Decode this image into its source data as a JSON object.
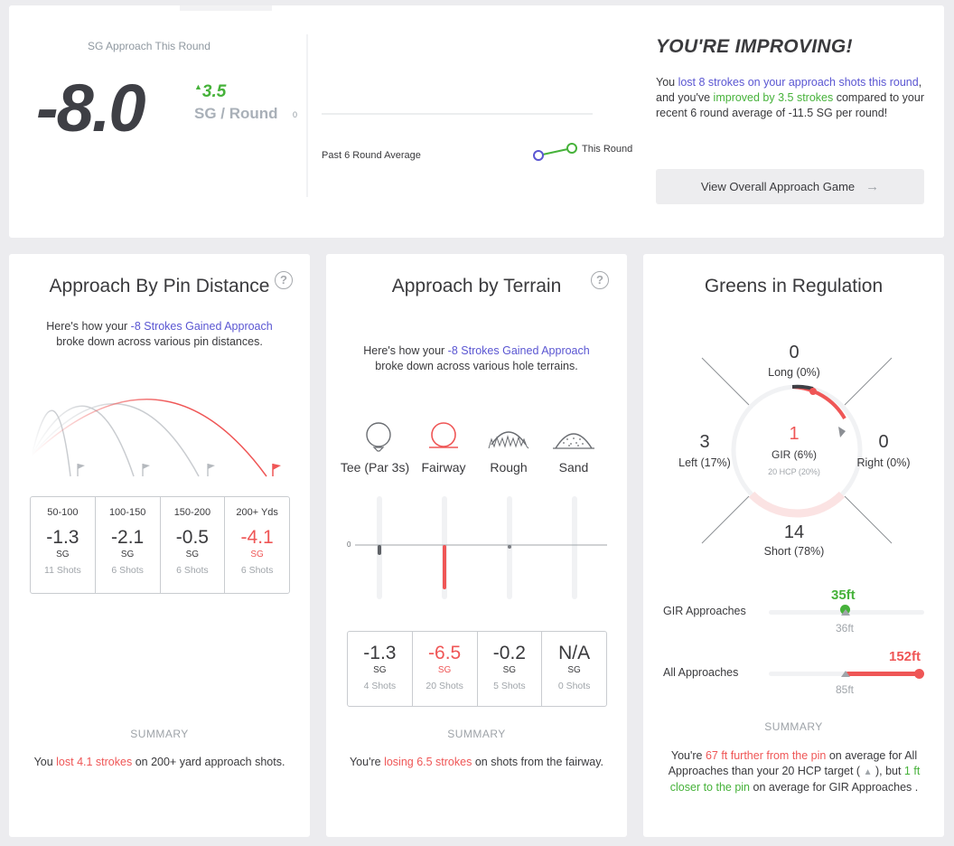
{
  "colors": {
    "accent_blue": "#5a56d2",
    "good_green": "#46b23a",
    "bad_red": "#ef5656",
    "muted": "#9ea3a8"
  },
  "header": {
    "sg_label": "SG Approach This Round",
    "sg_value": "-8.0",
    "delta": "3.5",
    "delta_unit": "SG / Round",
    "chart_zero": "0",
    "past_label": "Past 6 Round Average",
    "this_label": "This Round",
    "title": "YOU'RE IMPROVING!",
    "text_1": "You ",
    "text_lost": "lost 8 strokes on your approach shots this round",
    "text_2": ", and you've ",
    "text_improved": "improved by 3.5 strokes",
    "text_3": " compared to your recent 6 round average of -11.5 SG per round!",
    "button_label": "View Overall Approach Game",
    "button_icon": "arrow-right-icon"
  },
  "pin": {
    "title": "Approach By Pin Distance",
    "help": "?",
    "intro_1": "Here's how your ",
    "intro_link": "-8 Strokes Gained Approach",
    "intro_2": " broke down across various pin distances.",
    "stats": [
      {
        "range": "50-100",
        "value": "-1.3",
        "unit": "SG",
        "shots": "11 Shots",
        "bad": false
      },
      {
        "range": "100-150",
        "value": "-2.1",
        "unit": "SG",
        "shots": "6 Shots",
        "bad": false
      },
      {
        "range": "150-200",
        "value": "-0.5",
        "unit": "SG",
        "shots": "6 Shots",
        "bad": false
      },
      {
        "range": "200+ Yds",
        "value": "-4.1",
        "unit": "SG",
        "shots": "6 Shots",
        "bad": true
      }
    ],
    "summary_h": "SUMMARY",
    "summary_1": "You ",
    "summary_red": "lost 4.1 strokes",
    "summary_2": " on 200+ yard approach shots."
  },
  "terrain": {
    "title": "Approach by Terrain",
    "help": "?",
    "intro_1": "Here's how your ",
    "intro_link": "-8 Strokes Gained Approach",
    "intro_2": " broke down across various hole terrains.",
    "icons": [
      {
        "label": "Tee (Par 3s)",
        "icon": "tee-ball-icon"
      },
      {
        "label": "Fairway",
        "icon": "fairway-ball-icon"
      },
      {
        "label": "Rough",
        "icon": "rough-icon"
      },
      {
        "label": "Sand",
        "icon": "sand-icon"
      }
    ],
    "zero": "0",
    "stats": [
      {
        "value": "-1.3",
        "unit": "SG",
        "shots": "4 Shots",
        "bad": false
      },
      {
        "value": "-6.5",
        "unit": "SG",
        "shots": "20 Shots",
        "bad": true
      },
      {
        "value": "-0.2",
        "unit": "SG",
        "shots": "5 Shots",
        "bad": false
      },
      {
        "value": "N/A",
        "unit": "SG",
        "shots": "0 Shots",
        "bad": false
      }
    ],
    "summary_h": "SUMMARY",
    "summary_1": "You're ",
    "summary_red": "losing 6.5 strokes",
    "summary_2": " on shots from the fairway."
  },
  "gir": {
    "title": "Greens in Regulation",
    "long_num": "0",
    "long_lbl": "Long (0%)",
    "left_num": "3",
    "left_lbl": "Left (17%)",
    "right_num": "0",
    "right_lbl": "Right (0%)",
    "short_num": "14",
    "short_lbl": "Short (78%)",
    "center_num": "1",
    "center_lbl": "GIR (6%)",
    "center_sub": "20 HCP (20%)",
    "gir_appr_lbl": "GIR Approaches",
    "gir_appr_val": "35ft",
    "gir_appr_target": "36ft",
    "all_appr_lbl": "All Approaches",
    "all_appr_val": "152ft",
    "all_appr_target": "85ft",
    "summary_h": "SUMMARY",
    "s1": "You're ",
    "s_red": "67 ft further from the pin",
    "s2": " on average for All Approaches than your 20 HCP target ( ",
    "s3": " ), but ",
    "s_green": "1 ft closer to the pin",
    "s4": " on average for GIR Approaches ."
  }
}
